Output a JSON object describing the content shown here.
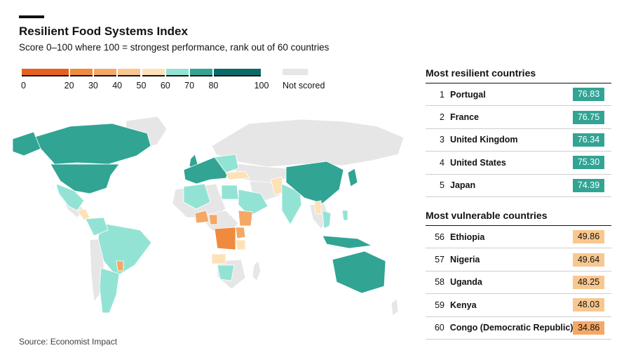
{
  "header": {
    "title": "Resilient Food Systems Index",
    "subtitle": "Score 0–100 where 100 = strongest performance, rank out of 60 countries"
  },
  "chart_data": {
    "type": "choropleth-map",
    "title": "Resilient Food Systems Index",
    "subtitle": "Score 0–100 where 100 = strongest performance, rank out of 60 countries",
    "legend": {
      "bins": [
        {
          "from": 0,
          "to": 20,
          "color": "#e8601f"
        },
        {
          "from": 20,
          "to": 30,
          "color": "#f08a3c"
        },
        {
          "from": 30,
          "to": 40,
          "color": "#f4a866"
        },
        {
          "from": 40,
          "to": 50,
          "color": "#f8c78f"
        },
        {
          "from": 50,
          "to": 60,
          "color": "#fde2b8"
        },
        {
          "from": 60,
          "to": 70,
          "color": "#93e3d4"
        },
        {
          "from": 70,
          "to": 80,
          "color": "#31a494"
        },
        {
          "from": 80,
          "to": 100,
          "color": "#0b6a68"
        }
      ],
      "tick_labels": [
        "0",
        "20",
        "30",
        "40",
        "50",
        "60",
        "70",
        "80",
        "100"
      ],
      "not_scored_label": "Not scored",
      "not_scored_color": "#e6e6e6"
    },
    "most_resilient": {
      "title": "Most resilient countries",
      "rows": [
        {
          "rank": "1",
          "country": "Portugal",
          "score": "76.83"
        },
        {
          "rank": "2",
          "country": "France",
          "score": "76.75"
        },
        {
          "rank": "3",
          "country": "United Kingdom",
          "score": "76.34"
        },
        {
          "rank": "4",
          "country": "United States",
          "score": "75.30"
        },
        {
          "rank": "5",
          "country": "Japan",
          "score": "74.39"
        }
      ]
    },
    "most_vulnerable": {
      "title": "Most vulnerable countries",
      "rows": [
        {
          "rank": "56",
          "country": "Ethiopia",
          "score": "49.86"
        },
        {
          "rank": "57",
          "country": "Nigeria",
          "score": "49.64"
        },
        {
          "rank": "58",
          "country": "Uganda",
          "score": "48.25"
        },
        {
          "rank": "59",
          "country": "Kenya",
          "score": "48.03"
        },
        {
          "rank": "60",
          "country": "Congo (Democratic Republic)",
          "score": "34.86"
        }
      ]
    }
  },
  "source": "Source: Economist Impact"
}
